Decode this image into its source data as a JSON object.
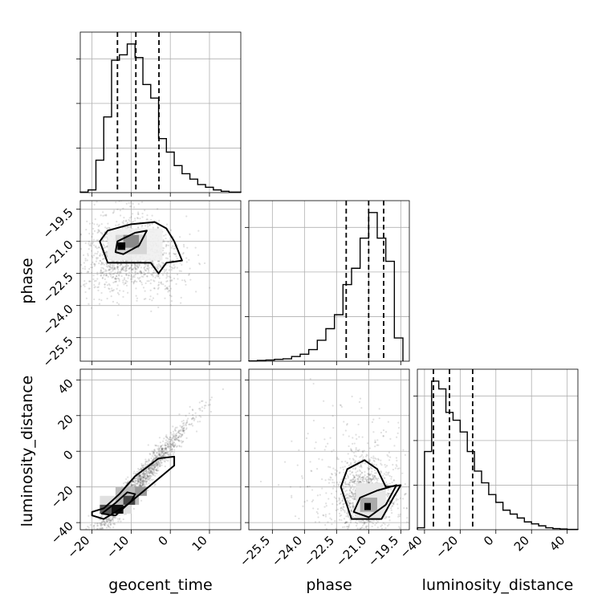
{
  "chart_data": {
    "type": "corner",
    "parameters": [
      "geocent_time",
      "phase",
      "luminosity_distance"
    ],
    "axis_labels": {
      "geocent_time": "geocent_time",
      "phase": "phase",
      "luminosity_distance": "luminosity_distance"
    },
    "ranges": {
      "geocent_time": [
        -23,
        18
      ],
      "phase": [
        -26.6,
        -19.1
      ],
      "luminosity_distance": [
        -44,
        46
      ]
    },
    "ticks": {
      "geocent_time": [
        -20,
        -10,
        0,
        10
      ],
      "phase": [
        -25.5,
        -24.0,
        -22.5,
        -21.0,
        -19.5
      ],
      "luminosity_distance": [
        -40,
        -20,
        0,
        20,
        40
      ]
    },
    "tick_labels": {
      "geocent_time": [
        "−20",
        "−10",
        "0",
        "10"
      ],
      "phase": [
        "−25.5",
        "−24.0",
        "−22.5",
        "−21.0",
        "−19.5"
      ],
      "luminosity_distance": [
        "−40",
        "−20",
        "0",
        "20",
        "40"
      ]
    },
    "histograms": [
      {
        "parameter": "geocent_time",
        "bin_edges": [
          -23,
          -21,
          -19,
          -17,
          -15,
          -13,
          -11,
          -9,
          -7,
          -5,
          -3,
          -1,
          1,
          3,
          5,
          7,
          9,
          11,
          13,
          15,
          18
        ],
        "counts": [
          0.2,
          1,
          12,
          28,
          49,
          51,
          55,
          50,
          40,
          35,
          20,
          15,
          10,
          7,
          5,
          3,
          2,
          1,
          0.5,
          0.2
        ],
        "quantiles": [
          -13.5,
          -8.8,
          -2.9
        ]
      },
      {
        "parameter": "phase",
        "bin_edges": [
          -26.6,
          -26.2,
          -25.8,
          -25.4,
          -25.0,
          -24.6,
          -24.2,
          -23.8,
          -23.4,
          -23.0,
          -22.6,
          -22.2,
          -21.8,
          -21.4,
          -21.0,
          -20.6,
          -20.2,
          -19.8,
          -19.4
        ],
        "counts": [
          0.1,
          0.3,
          0.5,
          0.8,
          1,
          2,
          3,
          5,
          9,
          14,
          20,
          33,
          40,
          53,
          64,
          53,
          43,
          10
        ],
        "quantiles": [
          -22.05,
          -21.0,
          -20.3
        ]
      },
      {
        "parameter": "luminosity_distance",
        "bin_edges": [
          -44,
          -40,
          -36,
          -32,
          -28,
          -24,
          -20,
          -16,
          -12,
          -8,
          -4,
          0,
          4,
          8,
          12,
          16,
          20,
          24,
          28,
          32,
          36,
          40,
          46
        ],
        "counts": [
          0.5,
          20,
          38,
          36,
          30,
          28,
          25,
          20,
          15,
          12,
          9,
          7,
          5,
          4,
          3,
          2,
          1.5,
          1,
          0.5,
          0.3,
          0.2,
          0.1
        ],
        "quantiles": [
          -35,
          -26,
          -13
        ]
      }
    ],
    "pairs": [
      {
        "x": "geocent_time",
        "y": "phase",
        "peak": [
          -12,
          -21.2
        ]
      },
      {
        "x": "geocent_time",
        "y": "luminosity_distance",
        "peak": [
          -13,
          -32
        ]
      },
      {
        "x": "phase",
        "y": "luminosity_distance",
        "peak": [
          -21.2,
          -33
        ]
      }
    ],
    "grid": true
  }
}
